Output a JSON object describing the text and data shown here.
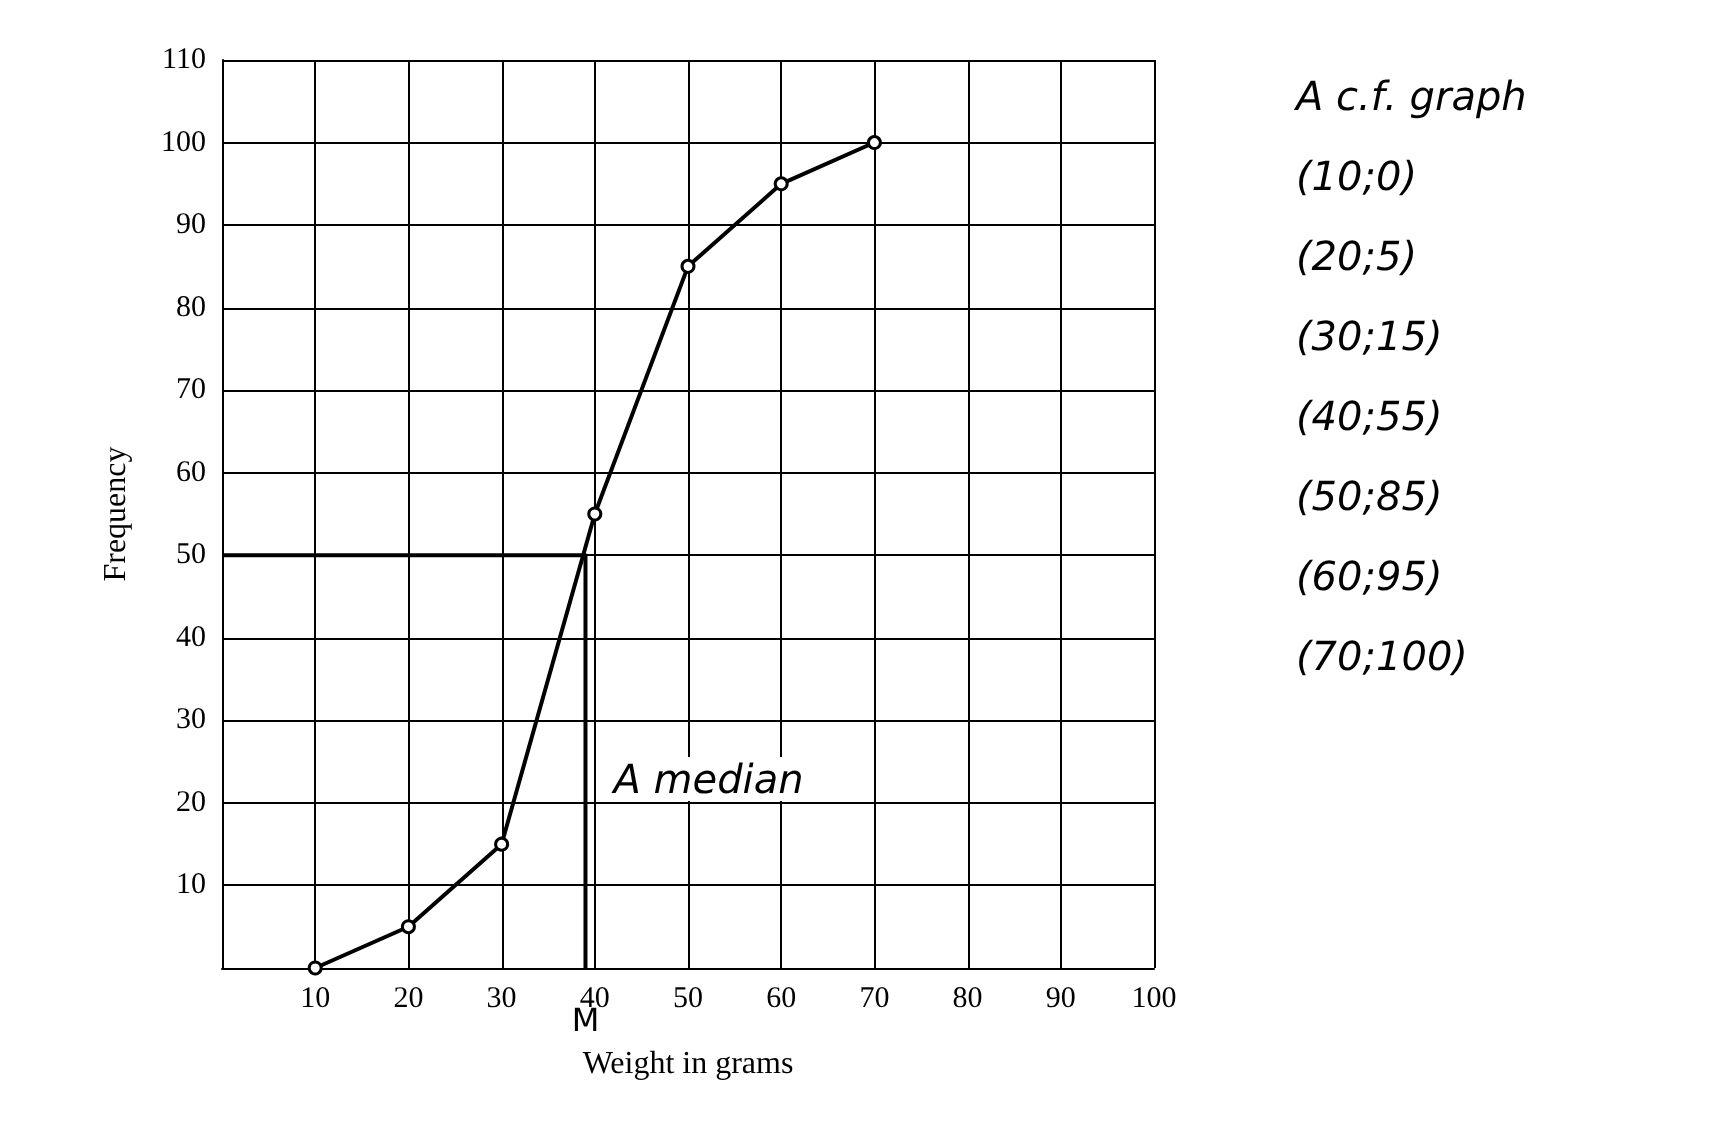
{
  "chart_data": {
    "type": "line",
    "xlabel": "Weight in grams",
    "ylabel": "Frequency",
    "xlim": [
      0,
      100
    ],
    "xticks": [
      10,
      20,
      30,
      40,
      50,
      60,
      70,
      80,
      90,
      100
    ],
    "ylim": [
      0,
      110
    ],
    "yticks": [
      10,
      20,
      30,
      40,
      50,
      60,
      70,
      80,
      90,
      100,
      110
    ],
    "grid": true,
    "series": [
      {
        "color": "#000000",
        "x": [
          10,
          20,
          30,
          40,
          50,
          60,
          70
        ],
        "values": [
          0,
          5,
          15,
          55,
          85,
          95,
          100
        ],
        "marker": "circle"
      },
      {
        "color": "#000000",
        "x": [
          0,
          39,
          39
        ],
        "values": [
          50,
          50,
          0
        ],
        "marker": "none"
      }
    ],
    "annotations": [
      "A c.f. graph",
      "(10;0)",
      "(20;5)",
      "(30;15)",
      "(40;55)",
      "(50;85)",
      "(60;95)",
      "(70;100)",
      {
        "text": "A median",
        "x": 39,
        "y": 20
      },
      {
        "text": "M",
        "x": 39,
        "y": 0
      }
    ]
  }
}
